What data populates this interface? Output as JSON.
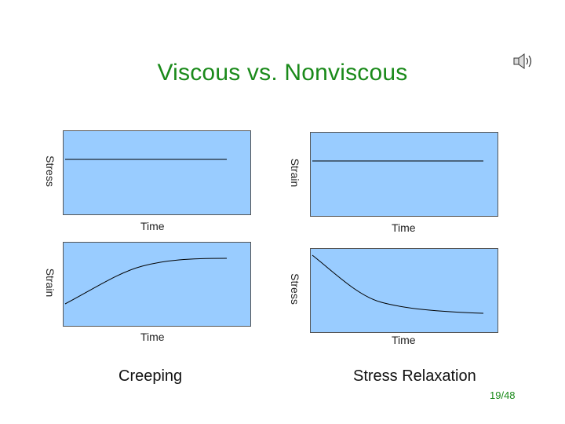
{
  "slide": {
    "title": "Viscous vs. Nonviscous",
    "page_number": "19/48"
  },
  "icons": {
    "speaker": "speaker-icon"
  },
  "colors": {
    "title": "#1a8a1a",
    "panel_bg": "#99ccff",
    "curve": "#000000"
  },
  "panels": {
    "top_left": {
      "ylabel": "Stress",
      "xlabel": "Time",
      "curve": "constant"
    },
    "top_right": {
      "ylabel": "Strain",
      "xlabel": "Time",
      "curve": "constant"
    },
    "bottom_left": {
      "ylabel": "Strain",
      "xlabel": "Time",
      "curve": "rising-saturating"
    },
    "bottom_right": {
      "ylabel": "Stress",
      "xlabel": "Time",
      "curve": "decaying"
    }
  },
  "captions": {
    "left": "Creeping",
    "right": "Stress Relaxation"
  }
}
